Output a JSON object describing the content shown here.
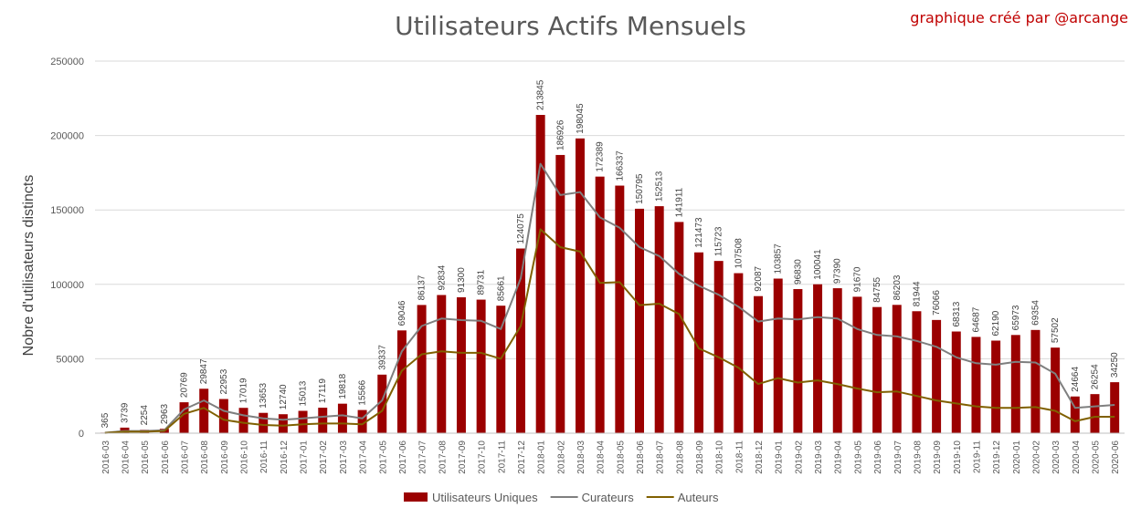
{
  "title": "Utilisateurs Actifs Mensuels",
  "credit": "graphique créé par  @arcange",
  "chart_data": {
    "type": "bar",
    "title": "Utilisateurs Actifs Mensuels",
    "ylabel": "Nobre d'utilisateurs distincts",
    "xlabel": "",
    "ylim": [
      0,
      250000
    ],
    "yticks": [
      0,
      50000,
      100000,
      150000,
      200000,
      250000
    ],
    "grid": true,
    "legend_position": "bottom",
    "categories": [
      "2016-03",
      "2016-04",
      "2016-05",
      "2016-06",
      "2016-07",
      "2016-08",
      "2016-09",
      "2016-10",
      "2016-11",
      "2016-12",
      "2017-01",
      "2017-02",
      "2017-03",
      "2017-04",
      "2017-05",
      "2017-06",
      "2017-07",
      "2017-08",
      "2017-09",
      "2017-10",
      "2017-11",
      "2017-12",
      "2018-01",
      "2018-02",
      "2018-03",
      "2018-04",
      "2018-05",
      "2018-06",
      "2018-07",
      "2018-08",
      "2018-09",
      "2018-10",
      "2018-11",
      "2018-12",
      "2019-01",
      "2019-02",
      "2019-03",
      "2019-04",
      "2019-05",
      "2019-06",
      "2019-07",
      "2019-08",
      "2019-09",
      "2019-10",
      "2019-11",
      "2019-12",
      "2020-01",
      "2020-02",
      "2020-03",
      "2020-04",
      "2020-05",
      "2020-06"
    ],
    "series": [
      {
        "name": "Utilisateurs Uniques",
        "type": "bar",
        "color": "#9b0000",
        "values": [
          365,
          3739,
          2254,
          2963,
          20769,
          29847,
          22953,
          17019,
          13653,
          12740,
          15013,
          17119,
          19818,
          15566,
          39337,
          69046,
          86137,
          92834,
          91300,
          89731,
          85661,
          124075,
          213845,
          186926,
          198045,
          172389,
          166337,
          150795,
          152513,
          141911,
          121473,
          115723,
          107508,
          92087,
          103857,
          96830,
          100041,
          97390,
          91670,
          84755,
          86203,
          81944,
          76066,
          68313,
          64687,
          62190,
          65973,
          69354,
          57502,
          24664,
          26254,
          34250
        ]
      },
      {
        "name": "Curateurs",
        "type": "line",
        "color": "#7f7f7f",
        "values": [
          300,
          1500,
          1500,
          2000,
          16000,
          22000,
          15000,
          12000,
          10000,
          9000,
          10000,
          11000,
          12000,
          10000,
          22000,
          55000,
          72000,
          77000,
          76000,
          75500,
          70000,
          104000,
          181000,
          160000,
          162000,
          145000,
          138000,
          125000,
          119000,
          107000,
          99000,
          93000,
          85000,
          75000,
          77000,
          76500,
          78000,
          77000,
          70000,
          66000,
          65000,
          62000,
          58000,
          51000,
          47000,
          46000,
          48000,
          47500,
          40000,
          17000,
          18000,
          19000
        ]
      },
      {
        "name": "Auteurs",
        "type": "line",
        "color": "#806000",
        "values": [
          200,
          1000,
          1000,
          1500,
          13000,
          17000,
          9000,
          7000,
          5500,
          5000,
          6000,
          6500,
          6500,
          6000,
          15000,
          42000,
          53000,
          55000,
          54000,
          54000,
          50000,
          72000,
          137000,
          125000,
          122000,
          101000,
          101500,
          86000,
          87000,
          80000,
          57000,
          51000,
          44000,
          33000,
          37000,
          34000,
          35500,
          33000,
          30000,
          27500,
          28000,
          25000,
          22000,
          20000,
          18000,
          17000,
          17000,
          17500,
          15000,
          8000,
          11000,
          11000
        ]
      }
    ]
  }
}
